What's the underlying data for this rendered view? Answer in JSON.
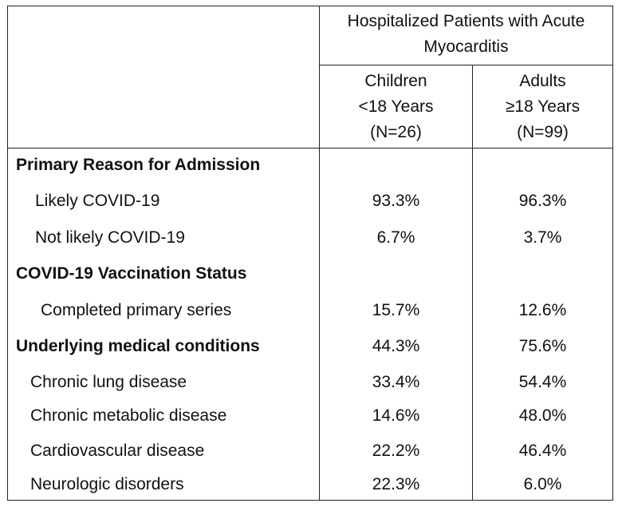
{
  "header": {
    "group_title_line1": "Hospitalized Patients with Acute",
    "group_title_line2": "Myocarditis",
    "children": [
      "Children",
      "<18 Years",
      "(N=26)"
    ],
    "adults": [
      "Adults",
      "≥18 Years",
      "(N=99)"
    ]
  },
  "rows": [
    {
      "label": "Primary Reason for Admission",
      "children": "",
      "adults": ""
    },
    {
      "label": "Likely COVID-19",
      "children": "93.3%",
      "adults": "96.3%"
    },
    {
      "label": "Not likely COVID-19",
      "children": "6.7%",
      "adults": "3.7%"
    },
    {
      "label": "COVID-19 Vaccination Status",
      "children": "",
      "adults": ""
    },
    {
      "label": "Completed primary series",
      "children": "15.7%",
      "adults": "12.6%"
    },
    {
      "label": "Underlying medical conditions",
      "children": "44.3%",
      "adults": "75.6%"
    },
    {
      "label": "Chronic lung disease",
      "children": "33.4%",
      "adults": "54.4%"
    },
    {
      "label": "Chronic metabolic disease",
      "children": "14.6%",
      "adults": "48.0%"
    },
    {
      "label": "Cardiovascular disease",
      "children": "22.2%",
      "adults": "46.4%"
    },
    {
      "label": "Neurologic disorders",
      "children": "22.3%",
      "adults": "6.0%"
    }
  ]
}
